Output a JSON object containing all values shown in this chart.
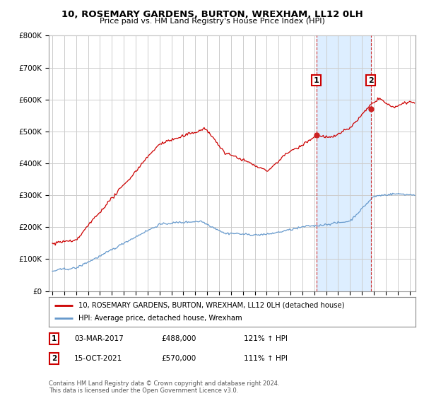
{
  "title": "10, ROSEMARY GARDENS, BURTON, WREXHAM, LL12 0LH",
  "subtitle": "Price paid vs. HM Land Registry's House Price Index (HPI)",
  "legend_red": "10, ROSEMARY GARDENS, BURTON, WREXHAM, LL12 0LH (detached house)",
  "legend_blue": "HPI: Average price, detached house, Wrexham",
  "annotation1_label": "1",
  "annotation1_date": "03-MAR-2017",
  "annotation1_price": "£488,000",
  "annotation1_hpi": "121% ↑ HPI",
  "annotation2_label": "2",
  "annotation2_date": "15-OCT-2021",
  "annotation2_price": "£570,000",
  "annotation2_hpi": "111% ↑ HPI",
  "footnote": "Contains HM Land Registry data © Crown copyright and database right 2024.\nThis data is licensed under the Open Government Licence v3.0.",
  "ylim": [
    0,
    800000
  ],
  "yticks": [
    0,
    100000,
    200000,
    300000,
    400000,
    500000,
    600000,
    700000,
    800000
  ],
  "red_color": "#cc0000",
  "blue_color": "#6699cc",
  "vline_color": "#cc3333",
  "shade_color": "#ddeeff",
  "background_color": "#ffffff",
  "grid_color": "#cccccc",
  "v1": 2017.167,
  "v2": 2021.75,
  "v1_price": 488000,
  "v2_price": 570000
}
